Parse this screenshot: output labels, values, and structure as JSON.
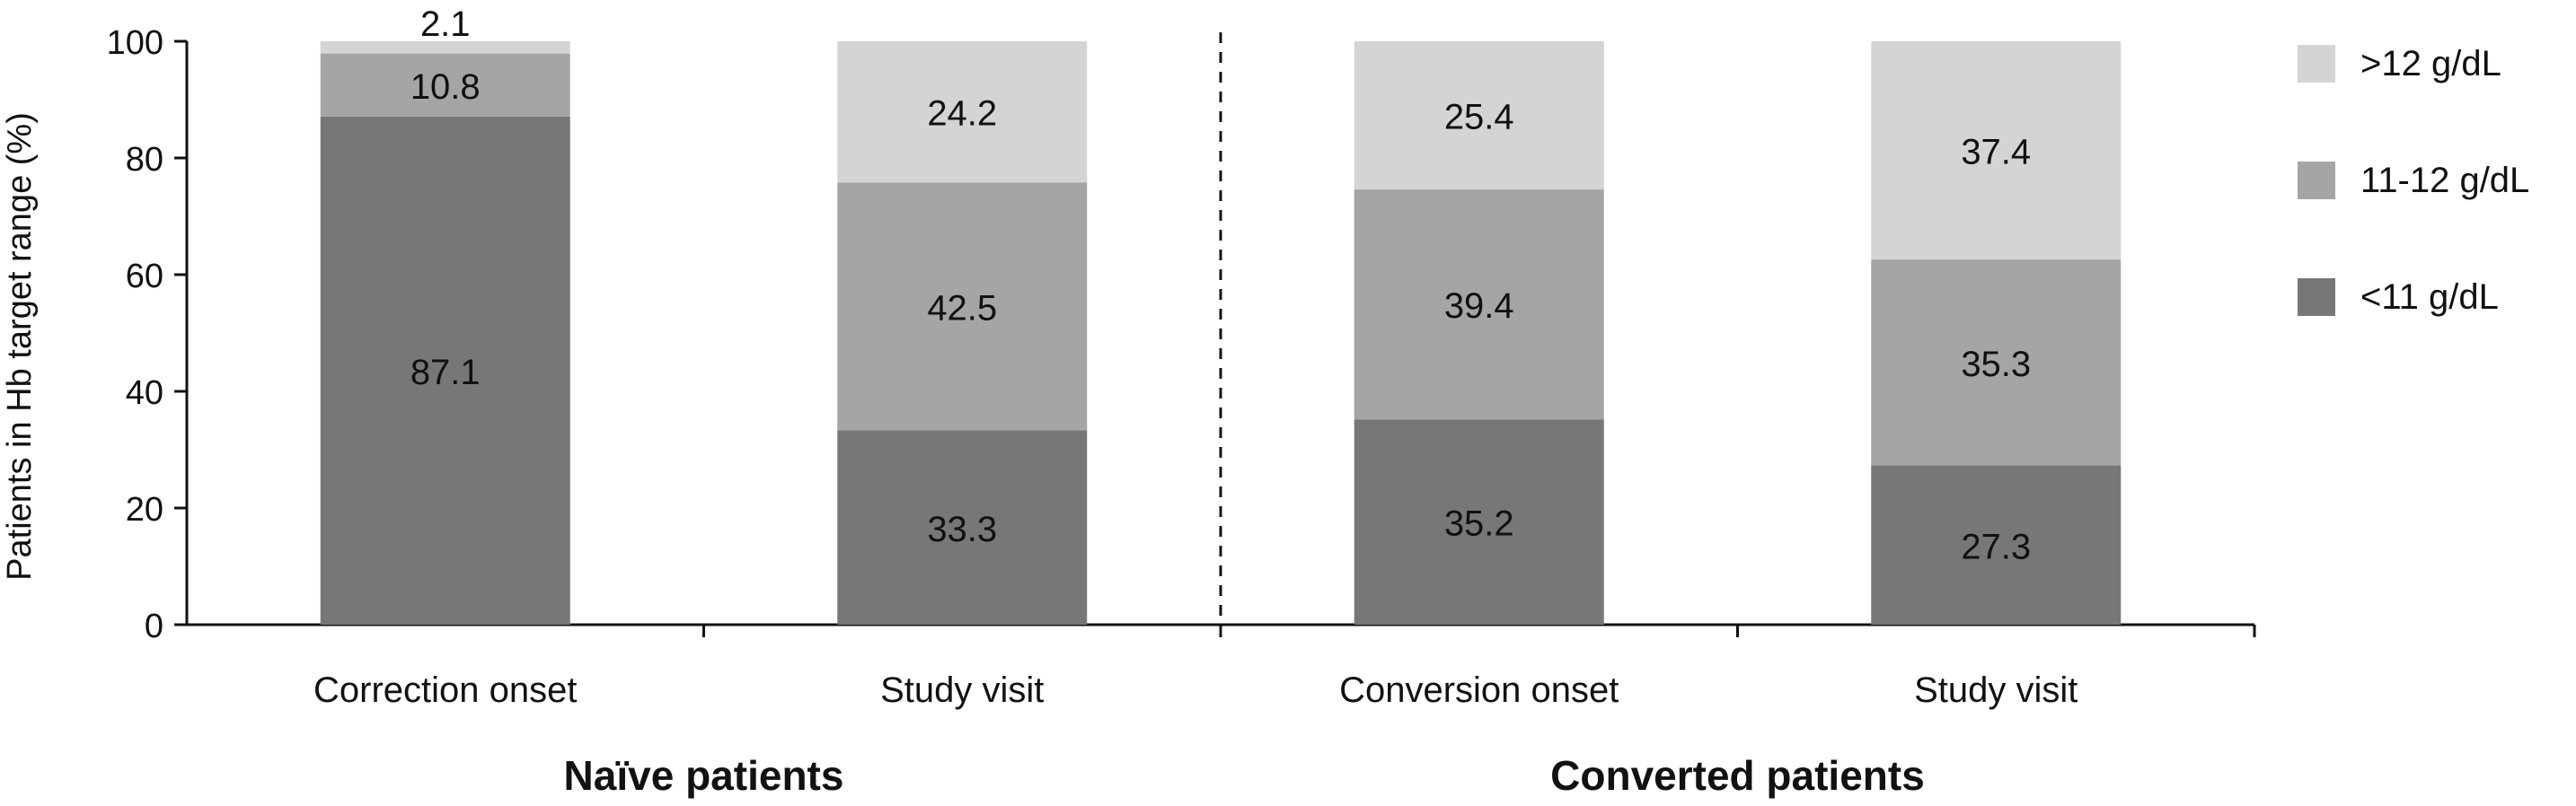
{
  "chart_data": {
    "type": "bar",
    "stacked": true,
    "ylabel": "Patients in Hb target range (%)",
    "ylim": [
      0,
      100
    ],
    "yticks": [
      0,
      20,
      40,
      60,
      80,
      100
    ],
    "grid": false,
    "legend_position": "right",
    "categories": [
      "Correction onset",
      "Study visit",
      "Conversion onset",
      "Study visit"
    ],
    "groups": [
      {
        "label": "Naïve patients",
        "categories": [
          0,
          1
        ]
      },
      {
        "label": "Converted patients",
        "categories": [
          2,
          3
        ]
      }
    ],
    "series": [
      {
        "name": "<11 g/dL",
        "color": "#777777",
        "values": [
          87.1,
          33.3,
          35.2,
          27.3
        ]
      },
      {
        "name": "11-12 g/dL",
        "color": "#a5a5a5",
        "values": [
          10.8,
          42.5,
          39.4,
          35.3
        ]
      },
      {
        "name": ">12 g/dL",
        "color": "#d4d4d4",
        "values": [
          2.1,
          24.2,
          25.4,
          37.4
        ]
      }
    ],
    "legend_order": [
      ">12 g/dL",
      "11-12 g/dL",
      "<11 g/dL"
    ],
    "group_separator": "dashed"
  }
}
